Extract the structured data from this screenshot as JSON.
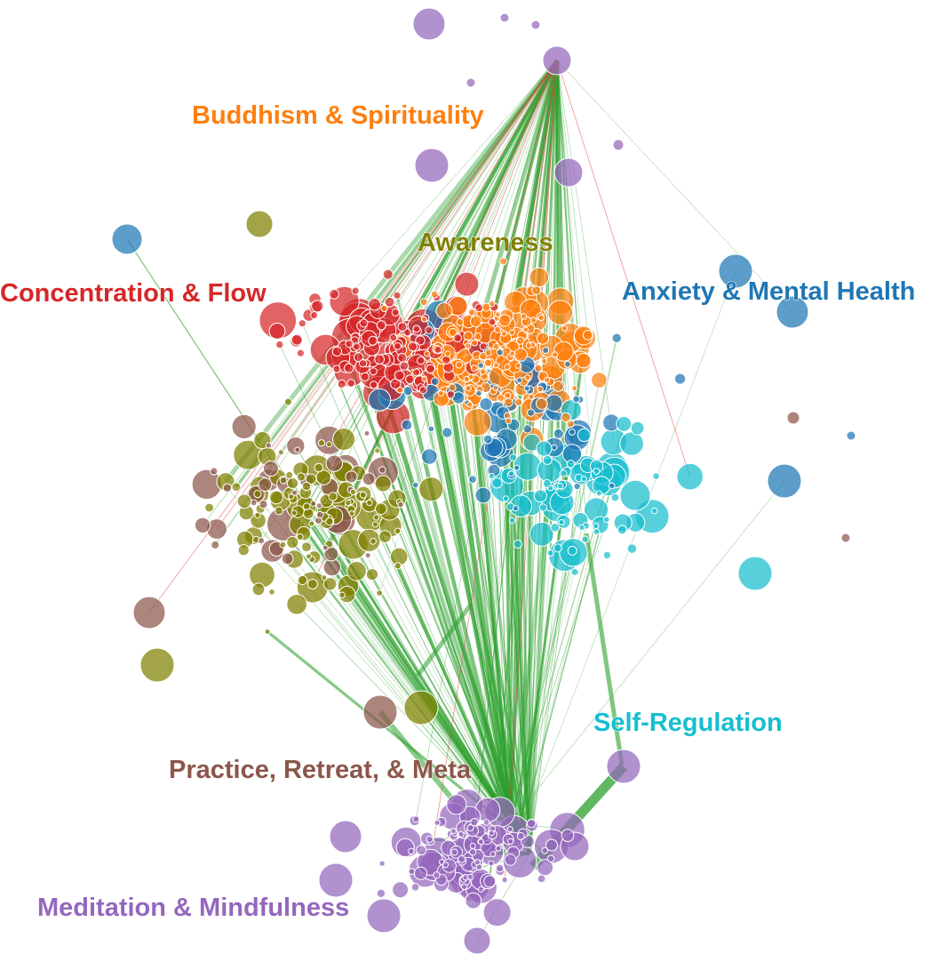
{
  "clusters": [
    {
      "id": "buddhism",
      "label": "Buddhism & Spirituality",
      "color": "#ff7f0e"
    },
    {
      "id": "awareness",
      "label": "Awareness",
      "color": "#808000"
    },
    {
      "id": "concentration",
      "label": "Concentration & Flow",
      "color": "#d62728"
    },
    {
      "id": "anxiety",
      "label": "Anxiety & Mental Health",
      "color": "#1f77b4"
    },
    {
      "id": "selfreg",
      "label": "Self-Regulation",
      "color": "#17becf"
    },
    {
      "id": "practice",
      "label": "Practice, Retreat, & Meta",
      "color": "#8c564b"
    },
    {
      "id": "meditation",
      "label": "Meditation & Mindfulness",
      "color": "#9467bd"
    }
  ],
  "edge_colors": {
    "positive": "#2ca02c",
    "negative": "#e8474a"
  }
}
